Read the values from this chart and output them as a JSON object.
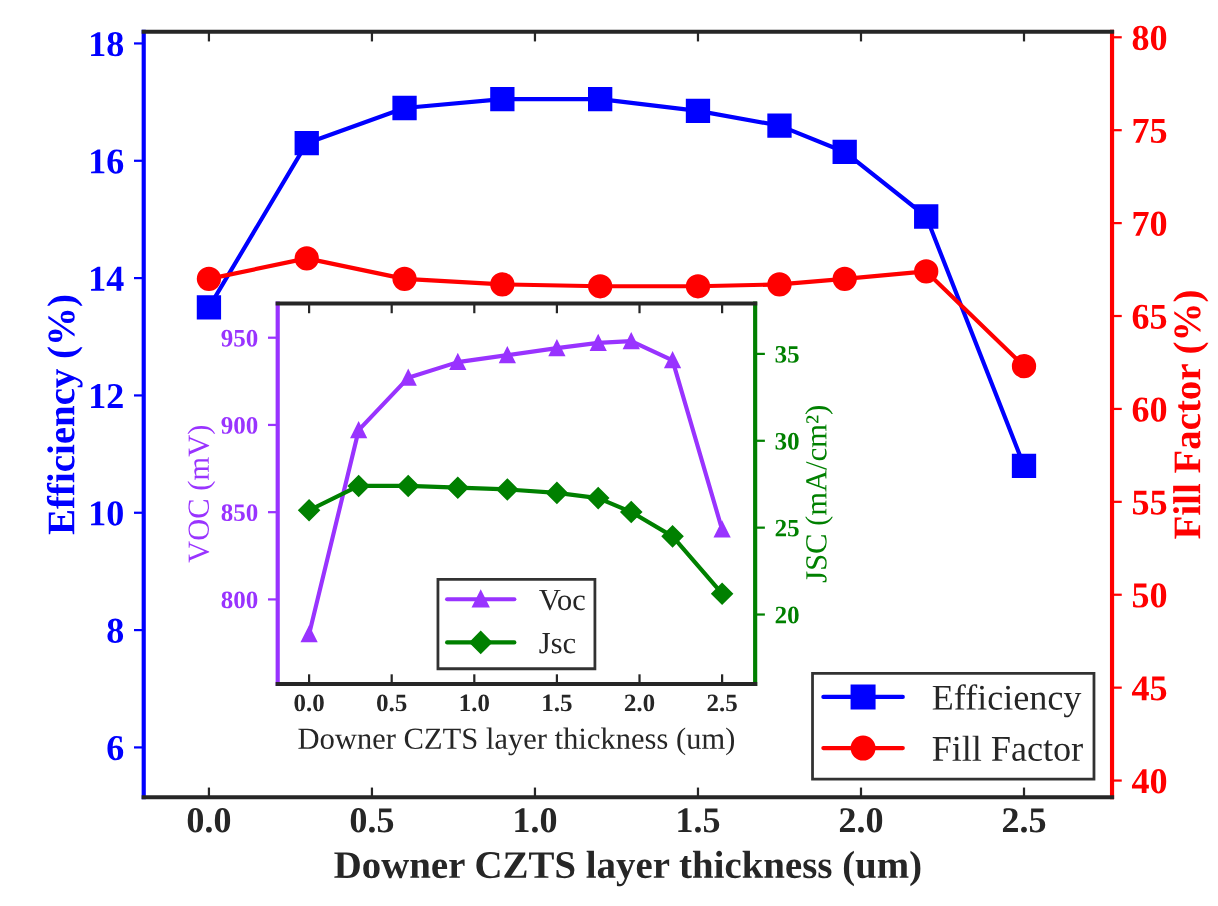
{
  "chart_data": [
    {
      "type": "line",
      "xlabel": "Downer CZTS layer thickness (um)",
      "ylabel": "Efficiency (%)",
      "y2label": "Fill Factor (%)",
      "x": [
        0,
        0.3,
        0.6,
        0.9,
        1.2,
        1.5,
        1.75,
        1.95,
        2.2,
        2.5
      ],
      "series": [
        {
          "name": "Efficiency",
          "color": "#0000ff",
          "marker": "square",
          "values": [
            13.5,
            16.3,
            16.9,
            17.05,
            17.05,
            16.85,
            16.6,
            16.15,
            15.05,
            10.8
          ]
        },
        {
          "name": "Fill Factor",
          "color": "#ff0000",
          "marker": "circle",
          "axis": "y2",
          "values": [
            67.0,
            68.1,
            67.0,
            66.7,
            66.6,
            66.6,
            66.7,
            67.0,
            67.4,
            62.3
          ]
        }
      ],
      "xlim": [
        -0.2,
        2.77
      ],
      "xticks": [
        {
          "value": 0,
          "label": "0.0"
        },
        0.5,
        {
          "value": 1,
          "label": "1.0"
        },
        1.5,
        {
          "value": 2,
          "label": "2.0"
        },
        2.5
      ],
      "ylim": [
        5.15,
        18.2
      ],
      "yticks": [
        6,
        8,
        10,
        12,
        14,
        16,
        18
      ],
      "y2lim": [
        39.1,
        80.3
      ],
      "y2ticks": [
        40,
        45,
        50,
        55,
        60,
        65,
        70,
        75,
        80
      ],
      "legend": "bottom right",
      "grid": false,
      "line_style": "solid"
    },
    {
      "type": "line",
      "xlabel": "Downer CZTS layer thickness (um)",
      "ylabel": "VOC (mV)",
      "y2label": "JSC (mA/cm²)",
      "x": [
        0,
        0.3,
        0.6,
        0.9,
        1.2,
        1.5,
        1.75,
        1.95,
        2.2,
        2.5
      ],
      "series": [
        {
          "name": "Voc",
          "color": "#9933ff",
          "marker": "triangle",
          "values": [
            780,
            897,
            927,
            936,
            940,
            944,
            947,
            948,
            937,
            840
          ]
        },
        {
          "name": "Jsc",
          "color": "#008000",
          "marker": "diamond",
          "axis": "y2",
          "values": [
            26.0,
            27.4,
            27.4,
            27.3,
            27.2,
            27.0,
            26.7,
            25.9,
            24.5,
            21.2
          ]
        }
      ],
      "xlim": [
        -0.19,
        2.7
      ],
      "xticks": [
        {
          "value": 0,
          "label": "0.0"
        },
        0.5,
        {
          "value": 1,
          "label": "1.0"
        },
        1.5,
        {
          "value": 2,
          "label": "2.0"
        },
        2.5
      ],
      "ylim": [
        751.5,
        969.6
      ],
      "yticks": [
        800,
        850,
        900,
        950
      ],
      "y2lim": [
        16.0,
        37.9
      ],
      "y2ticks": [
        20,
        25,
        30,
        35
      ],
      "legend": "bottom",
      "grid": false,
      "line_style": "solid"
    }
  ]
}
